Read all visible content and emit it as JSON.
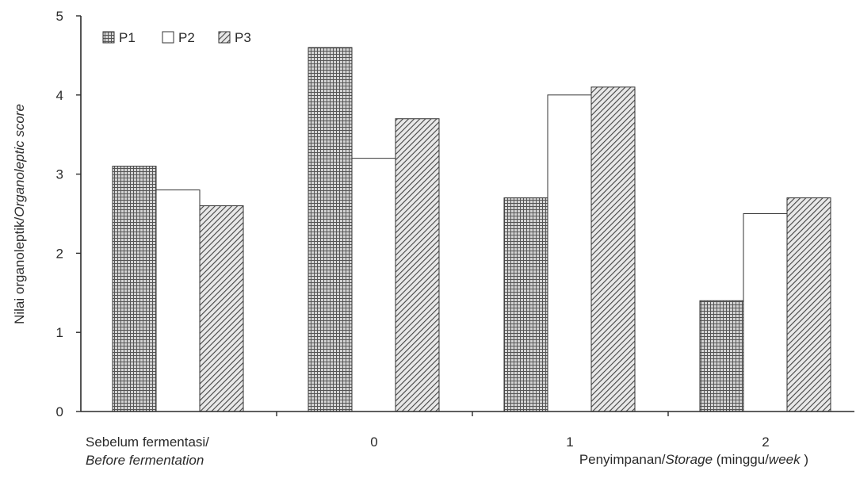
{
  "chart_data": {
    "type": "bar",
    "categories": [
      [
        "Sebelum fermentasi/",
        "Before fermentation"
      ],
      [
        "0"
      ],
      [
        "1"
      ],
      [
        "2"
      ]
    ],
    "series": [
      {
        "name": "P1",
        "pattern": "grid",
        "values": [
          3.1,
          4.6,
          2.7,
          1.4
        ]
      },
      {
        "name": "P2",
        "pattern": "white",
        "values": [
          2.8,
          3.2,
          4.0,
          2.5
        ]
      },
      {
        "name": "P3",
        "pattern": "hatch",
        "values": [
          2.6,
          3.7,
          4.1,
          2.7
        ]
      }
    ],
    "ylim": [
      0,
      5
    ],
    "yticks": [
      "0",
      "1",
      "2",
      "3",
      "4",
      "5"
    ],
    "ylabel": {
      "plain": "Nilai organoleptik/",
      "italic": "Organoleptic score"
    },
    "xlabel": {
      "plain1": "Penyimpanan/",
      "italic1": "Storage",
      "plain2": " (minggu/",
      "italic2": "week",
      "plain3": " )"
    },
    "legend_position": "top-left",
    "grid": false,
    "colors": {
      "ink": "#2a2a2a",
      "p1_fill": "#cfcfcf",
      "p1_line": "#555555",
      "hatch_line": "#444444",
      "hatch_bg": "#e6e6e6"
    }
  }
}
